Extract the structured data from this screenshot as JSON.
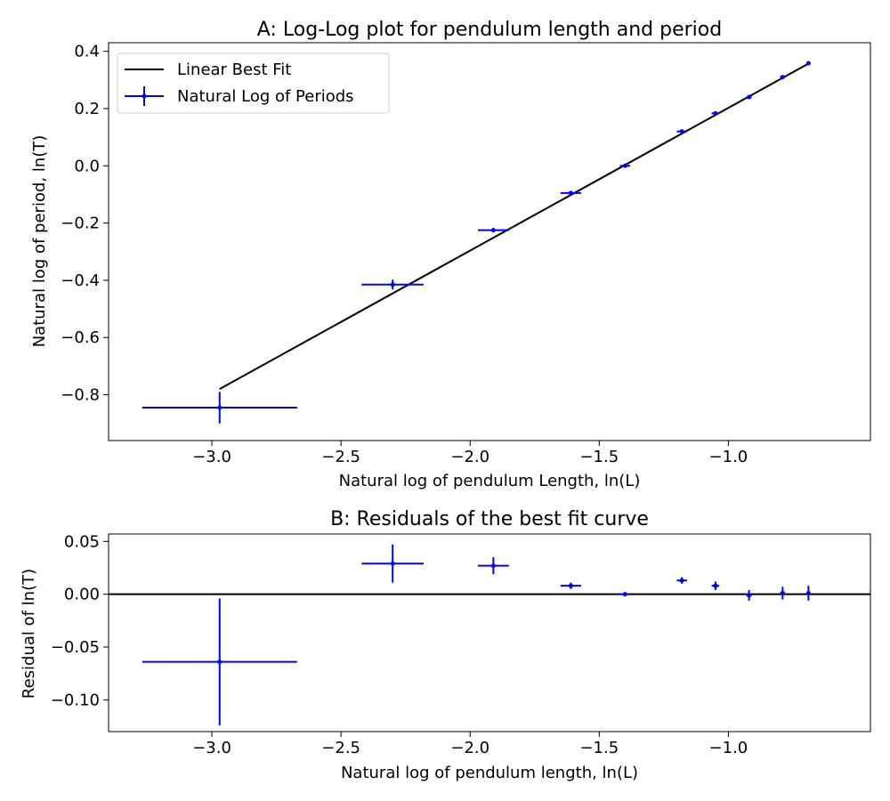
{
  "chart_data": [
    {
      "type": "scatter",
      "title": "A: Log-Log plot for pendulum length and period",
      "xlabel": "Natural log of pendulum Length, ln(L)",
      "ylabel": "Natural log of period, ln(T)",
      "xlim": [
        -3.4,
        -0.45
      ],
      "ylim": [
        -0.96,
        0.43
      ],
      "xticks": [
        -3.0,
        -2.5,
        -2.0,
        -1.5,
        -1.0
      ],
      "xtick_labels": [
        "−3.0",
        "−2.5",
        "−2.0",
        "−1.5",
        "−1.0"
      ],
      "yticks": [
        -0.8,
        -0.6,
        -0.4,
        -0.2,
        0.0,
        0.2,
        0.4
      ],
      "ytick_labels": [
        "−0.8",
        "−0.6",
        "−0.4",
        "−0.2",
        "0.0",
        "0.2",
        "0.4"
      ],
      "grid": false,
      "legend_position": "top-left",
      "legend": [
        "Linear Best Fit",
        "Natural Log of Periods"
      ],
      "fit_line": {
        "name": "Linear Best Fit",
        "color": "#000000",
        "x": [
          -2.97,
          -0.69
        ],
        "y": [
          -0.78,
          0.357
        ]
      },
      "series": [
        {
          "name": "Natural Log of Periods",
          "color": "#0000ff",
          "x": [
            -2.97,
            -2.3,
            -1.91,
            -1.61,
            -1.4,
            -1.18,
            -1.05,
            -0.92,
            -0.79,
            -0.69
          ],
          "y": [
            -0.845,
            -0.415,
            -0.225,
            -0.095,
            0.0,
            0.12,
            0.183,
            0.24,
            0.31,
            0.358
          ],
          "xerr": [
            0.3,
            0.12,
            0.06,
            0.04,
            0.02,
            0.02,
            0.015,
            0.01,
            0.01,
            0.008
          ],
          "yerr": [
            0.055,
            0.017,
            0.007,
            0.004,
            0.003,
            0.003,
            0.003,
            0.003,
            0.003,
            0.003
          ]
        }
      ]
    },
    {
      "type": "scatter",
      "title": "B: Residuals of the best fit curve",
      "xlabel": "Natural log of pendulum length, ln(L)",
      "ylabel": "Residual of ln(T)",
      "xlim": [
        -3.4,
        -0.45
      ],
      "ylim": [
        -0.13,
        0.057
      ],
      "xticks": [
        -3.0,
        -2.5,
        -2.0,
        -1.5,
        -1.0
      ],
      "xtick_labels": [
        "−3.0",
        "−2.5",
        "−2.0",
        "−1.5",
        "−1.0"
      ],
      "yticks": [
        -0.1,
        -0.05,
        0.0,
        0.05
      ],
      "ytick_labels": [
        "−0.10",
        "−0.05",
        "0.00",
        "0.05"
      ],
      "grid": false,
      "zero_line": 0.0,
      "series": [
        {
          "color": "#0000ff",
          "x": [
            -2.97,
            -2.3,
            -1.91,
            -1.61,
            -1.4,
            -1.18,
            -1.05,
            -0.92,
            -0.79,
            -0.69
          ],
          "y": [
            -0.064,
            0.029,
            0.027,
            0.008,
            0.0,
            0.013,
            0.008,
            -0.001,
            0.001,
            0.001
          ],
          "xerr": [
            0.3,
            0.12,
            0.06,
            0.04,
            0.02,
            0.02,
            0.015,
            0.01,
            0.01,
            0.008
          ],
          "yerr": [
            0.06,
            0.018,
            0.008,
            0.003,
            0.002,
            0.003,
            0.004,
            0.005,
            0.006,
            0.007
          ]
        }
      ]
    }
  ]
}
